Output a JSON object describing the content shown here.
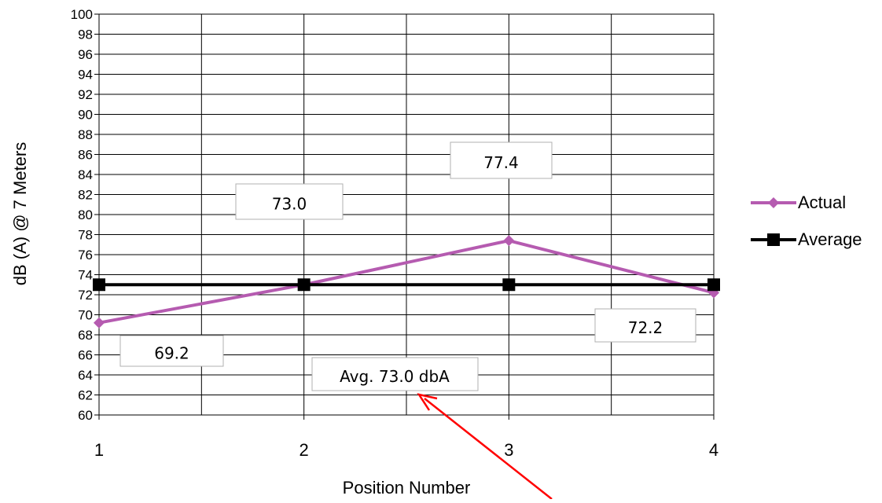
{
  "chart_data": {
    "type": "line",
    "title": "",
    "xlabel": "Position Number",
    "ylabel": "dB (A) @ 7 Meters",
    "x": [
      1,
      2,
      3,
      4
    ],
    "xlim": [
      1,
      4
    ],
    "ylim": [
      60,
      100
    ],
    "y_ticks": [
      "60",
      "62",
      "64",
      "66",
      "68",
      "70",
      "72",
      "74",
      "76",
      "78",
      "80",
      "82",
      "84",
      "86",
      "88",
      "90",
      "92",
      "94",
      "96",
      "98",
      "100"
    ],
    "x_ticks": [
      "1",
      "2",
      "3",
      "4"
    ],
    "grid": true,
    "legend_position": "right",
    "series": [
      {
        "name": "Actual",
        "values": [
          69.2,
          73.0,
          77.4,
          72.2
        ],
        "color": "#b55bb0",
        "marker": "diamond"
      },
      {
        "name": "Average",
        "values": [
          73.0,
          73.0,
          73.0,
          73.0
        ],
        "color": "#000000",
        "marker": "square"
      }
    ],
    "annotations": [
      "69.2",
      "73.0",
      "77.4",
      "72.2",
      "Avg. 73.0 dbA"
    ],
    "arrow_color": "#ff0000"
  }
}
